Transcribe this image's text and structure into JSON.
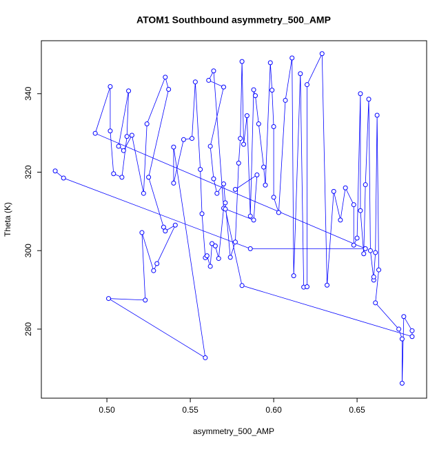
{
  "chart_data": {
    "type": "line",
    "title": "ATOM1 Southbound asymmetry_500_AMP",
    "x_label": "asymmetry_500_AMP",
    "y_label": "Theta (K)",
    "color": "#0000ff",
    "markers": true,
    "x": [
      0.469,
      0.474,
      0.586,
      0.655,
      0.493,
      0.502,
      0.502,
      0.504,
      0.509,
      0.512,
      0.513,
      0.507,
      0.51,
      0.515,
      0.522,
      0.524,
      0.535,
      0.537,
      0.525,
      0.534,
      0.535,
      0.541,
      0.53,
      0.528,
      0.521,
      0.523,
      0.501,
      0.559,
      0.54,
      0.54,
      0.546,
      0.551,
      0.553,
      0.556,
      0.557,
      0.559,
      0.56,
      0.562,
      0.563,
      0.565,
      0.567,
      0.57,
      0.564,
      0.561,
      0.57,
      0.562,
      0.564,
      0.566,
      0.57,
      0.571,
      0.574,
      0.577,
      0.579,
      0.58,
      0.581,
      0.582,
      0.584,
      0.586,
      0.588,
      0.589,
      0.591,
      0.594,
      0.595,
      0.598,
      0.599,
      0.6,
      0.6,
      0.603,
      0.607,
      0.611,
      0.612,
      0.616,
      0.618,
      0.62,
      0.62,
      0.629,
      0.632,
      0.636,
      0.64,
      0.643,
      0.648,
      0.648,
      0.65,
      0.652,
      0.652,
      0.654,
      0.655,
      0.657,
      0.658,
      0.66,
      0.66,
      0.661,
      0.662,
      0.663,
      0.661,
      0.675,
      0.677,
      0.677,
      0.678,
      0.683,
      0.683,
      0.581,
      0.571,
      0.588,
      0.59,
      0.577
    ],
    "values": [
      320.3,
      318.5,
      300.5,
      300.5,
      329.9,
      341.8,
      330.5,
      319.6,
      318.7,
      329.1,
      340.7,
      326.6,
      325.5,
      329.4,
      314.6,
      332.3,
      344.2,
      341.1,
      318.7,
      306,
      305,
      306.5,
      296.7,
      294.9,
      304.6,
      287.4,
      287.8,
      272.7,
      326.4,
      317.2,
      328.3,
      328.6,
      343,
      320.7,
      309.4,
      298.2,
      298.7,
      296,
      301.8,
      301.2,
      298,
      310.8,
      345.8,
      343.4,
      341.7,
      326.6,
      318.3,
      314.6,
      317,
      312.2,
      298.3,
      302.2,
      322.3,
      328.6,
      348.2,
      327.1,
      334.4,
      308.8,
      341,
      339.5,
      332.3,
      321.3,
      316.7,
      347.9,
      340.9,
      331.6,
      313.6,
      309.7,
      338.3,
      349.1,
      293.6,
      345.1,
      290.7,
      290.8,
      342.3,
      350.2,
      291.2,
      315.1,
      307.8,
      316,
      311.7,
      301.4,
      303.2,
      340,
      310.2,
      299.2,
      316.8,
      338.6,
      300,
      292.5,
      293.3,
      299.5,
      334.5,
      295.1,
      286.7,
      280,
      277.5,
      266.2,
      283.2,
      279.6,
      278.1,
      291.1,
      310.6,
      307.8,
      319.3,
      315.6
    ],
    "xlim": [
      0.4607,
      0.6917
    ],
    "ylim": [
      262.4,
      353.5
    ],
    "xticks": [
      {
        "value": 0.5,
        "label": "0.50"
      },
      0.55,
      {
        "value": 0.6,
        "label": "0.60"
      },
      0.65
    ],
    "yticks": [
      280,
      300,
      320,
      340
    ]
  }
}
